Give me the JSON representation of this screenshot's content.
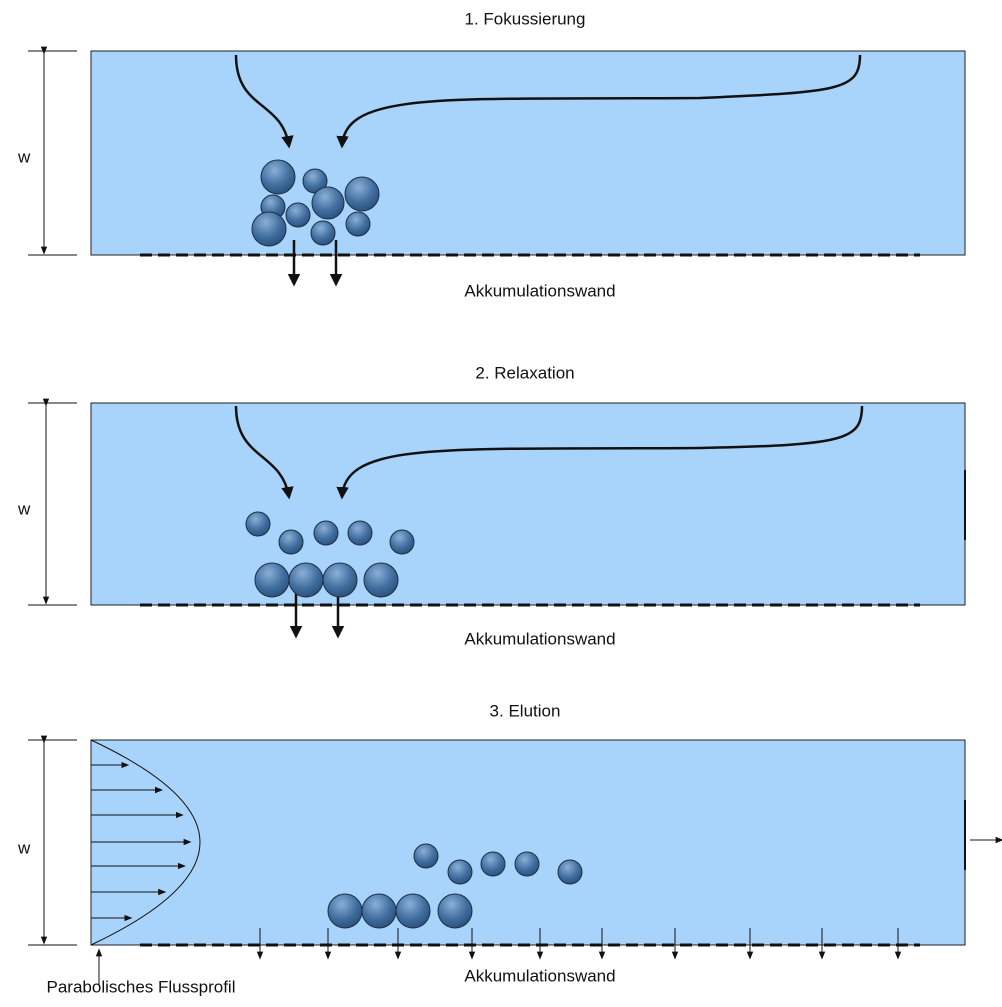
{
  "panels": [
    {
      "title": "1. Fokussierung",
      "width_label": "w",
      "wall_label": "Akkumulationswand"
    },
    {
      "title": "2. Relaxation",
      "width_label": "w",
      "wall_label": "Akkumulationswand"
    },
    {
      "title": "3. Elution",
      "width_label": "w",
      "wall_label": "Akkumulationswand"
    }
  ],
  "flow_profile_label": "Parabolisches Flussprofil"
}
